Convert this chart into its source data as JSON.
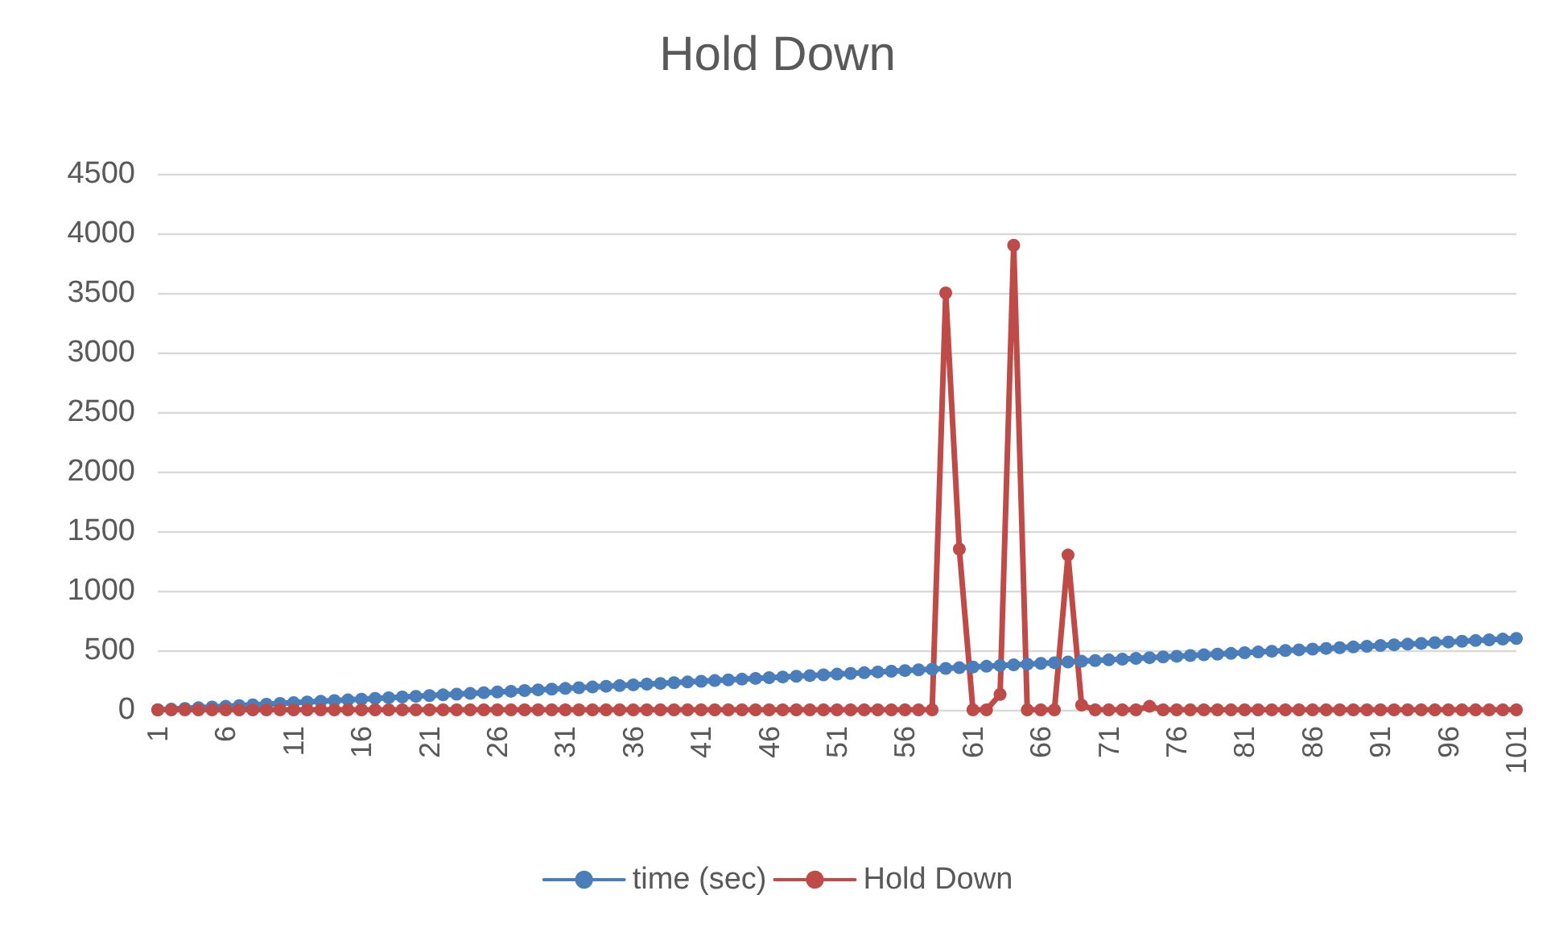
{
  "chart_data": {
    "type": "line",
    "title": "Hold Down",
    "categories": [
      "1",
      null,
      null,
      null,
      null,
      "6",
      null,
      null,
      null,
      null,
      "11",
      null,
      null,
      null,
      null,
      "16",
      null,
      null,
      null,
      null,
      "21",
      null,
      null,
      null,
      null,
      "26",
      null,
      null,
      null,
      null,
      "31",
      null,
      null,
      null,
      null,
      "36",
      null,
      null,
      null,
      null,
      "41",
      null,
      null,
      null,
      null,
      "46",
      null,
      null,
      null,
      null,
      "51",
      null,
      null,
      null,
      null,
      "56",
      null,
      null,
      null,
      null,
      "61",
      null,
      null,
      null,
      null,
      "66",
      null,
      null,
      null,
      null,
      "71",
      null,
      null,
      null,
      null,
      "76",
      null,
      null,
      null,
      null,
      "81",
      null,
      null,
      null,
      null,
      "86",
      null,
      null,
      null,
      null,
      "91",
      null,
      null,
      null,
      null,
      "96",
      null,
      null,
      null,
      null,
      "101"
    ],
    "series": [
      {
        "name": "time (sec)",
        "color": "#4a7ebb",
        "values": [
          0,
          6,
          12,
          18,
          24,
          30,
          36,
          42,
          48,
          54,
          60,
          66,
          72,
          78,
          84,
          90,
          96,
          102,
          108,
          114,
          120,
          126,
          132,
          138,
          144,
          150,
          156,
          162,
          168,
          174,
          180,
          186,
          192,
          198,
          204,
          210,
          216,
          222,
          228,
          234,
          240,
          246,
          252,
          258,
          264,
          270,
          276,
          282,
          288,
          294,
          300,
          306,
          312,
          318,
          324,
          330,
          336,
          342,
          348,
          354,
          360,
          366,
          372,
          378,
          384,
          390,
          396,
          402,
          408,
          414,
          420,
          426,
          432,
          438,
          444,
          450,
          456,
          462,
          468,
          474,
          480,
          486,
          492,
          498,
          504,
          510,
          516,
          522,
          528,
          534,
          540,
          546,
          552,
          558,
          564,
          570,
          576,
          582,
          588,
          594,
          600
        ]
      },
      {
        "name": "Hold Down",
        "color": "#be4b48",
        "values": [
          0,
          0,
          0,
          0,
          0,
          0,
          0,
          0,
          0,
          0,
          0,
          0,
          0,
          0,
          0,
          0,
          0,
          0,
          0,
          0,
          0,
          0,
          0,
          0,
          0,
          0,
          0,
          0,
          0,
          0,
          0,
          0,
          0,
          0,
          0,
          0,
          0,
          0,
          0,
          0,
          0,
          0,
          0,
          0,
          0,
          0,
          0,
          0,
          0,
          0,
          0,
          0,
          0,
          0,
          0,
          0,
          0,
          0,
          3500,
          1350,
          0,
          0,
          130,
          3900,
          0,
          0,
          0,
          1300,
          40,
          0,
          0,
          0,
          0,
          30,
          0,
          0,
          0,
          0,
          0,
          0,
          0,
          0,
          0,
          0,
          0,
          0,
          0,
          0,
          0,
          0,
          0,
          0,
          0,
          0,
          0,
          0,
          0,
          0,
          0,
          0,
          0
        ]
      }
    ],
    "ylim": [
      0,
      4500
    ],
    "yticks": [
      0,
      500,
      1000,
      1500,
      2000,
      2500,
      3000,
      3500,
      4000,
      4500
    ],
    "grid": "y",
    "legend": "bottom",
    "marker": "circle",
    "line_style": "solid"
  }
}
